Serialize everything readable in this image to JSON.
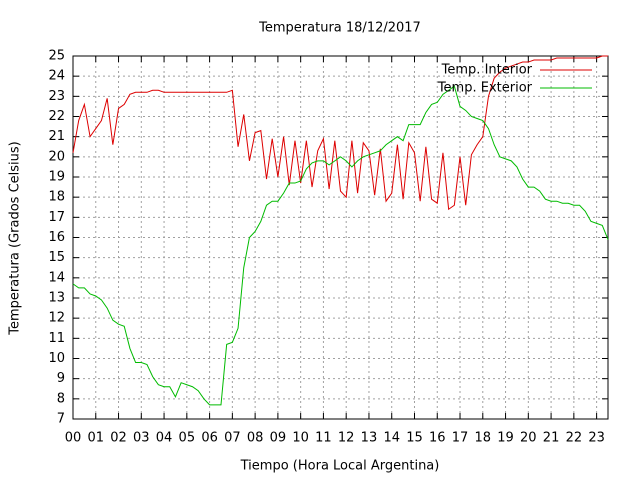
{
  "chart_data": {
    "type": "line",
    "title": "Temperatura 18/12/2017",
    "x_label": "Tiempo (Hora Local Argentina)",
    "y_label": "Temperatura (Grados Celsius)",
    "x": [
      0,
      0.25,
      0.5,
      0.75,
      1,
      1.25,
      1.5,
      1.75,
      2,
      2.25,
      2.5,
      2.75,
      3,
      3.25,
      3.5,
      3.75,
      4,
      4.25,
      4.5,
      4.75,
      5,
      5.25,
      5.5,
      5.75,
      6,
      6.25,
      6.5,
      6.75,
      7,
      7.25,
      7.5,
      7.75,
      8,
      8.25,
      8.5,
      8.75,
      9,
      9.25,
      9.5,
      9.75,
      10,
      10.25,
      10.5,
      10.75,
      11,
      11.25,
      11.5,
      11.75,
      12,
      12.25,
      12.5,
      12.75,
      13,
      13.25,
      13.5,
      13.75,
      14,
      14.25,
      14.5,
      14.75,
      15,
      15.25,
      15.5,
      15.75,
      16,
      16.25,
      16.5,
      16.75,
      17,
      17.25,
      17.5,
      17.75,
      18,
      18.25,
      18.5,
      18.75,
      19,
      19.25,
      19.5,
      19.75,
      20,
      20.25,
      20.5,
      20.75,
      21,
      21.25,
      21.5,
      21.75,
      22,
      22.25,
      22.5,
      22.75,
      23,
      23.25,
      23.5
    ],
    "series": [
      {
        "name": "Temp. Interior",
        "color": "#dd0000",
        "values": [
          20.2,
          21.8,
          22.6,
          21.0,
          21.4,
          21.8,
          22.9,
          20.6,
          22.4,
          22.6,
          23.1,
          23.2,
          23.2,
          23.2,
          23.3,
          23.3,
          23.2,
          23.2,
          23.2,
          23.2,
          23.2,
          23.2,
          23.2,
          23.2,
          23.2,
          23.2,
          23.2,
          23.2,
          23.3,
          20.5,
          22.1,
          19.8,
          21.2,
          21.3,
          18.9,
          20.9,
          19.0,
          21.0,
          18.6,
          20.8,
          18.7,
          20.8,
          18.5,
          20.3,
          20.9,
          18.4,
          20.8,
          18.3,
          18.0,
          20.8,
          18.2,
          20.7,
          20.3,
          18.1,
          20.4,
          17.8,
          18.2,
          20.6,
          17.9,
          20.7,
          20.2,
          17.8,
          20.5,
          17.9,
          17.7,
          20.2,
          17.4,
          17.6,
          20.0,
          17.6,
          20.1,
          20.6,
          21.0,
          23.0,
          23.9,
          24.2,
          24.4,
          24.5,
          24.6,
          24.7,
          24.7,
          24.8,
          24.8,
          24.8,
          24.8,
          24.9,
          24.9,
          24.9,
          24.9,
          24.9,
          24.9,
          24.9,
          24.9,
          25.0,
          25.0
        ]
      },
      {
        "name": "Temp. Exterior",
        "color": "#00bb00",
        "values": [
          13.7,
          13.5,
          13.5,
          13.2,
          13.1,
          12.9,
          12.5,
          11.9,
          11.7,
          11.6,
          10.5,
          9.8,
          9.8,
          9.7,
          9.1,
          8.7,
          8.6,
          8.6,
          8.1,
          8.8,
          8.7,
          8.6,
          8.4,
          8.0,
          7.7,
          7.7,
          7.7,
          10.7,
          10.8,
          11.5,
          14.5,
          16.0,
          16.3,
          16.8,
          17.6,
          17.8,
          17.8,
          18.2,
          18.7,
          18.7,
          18.8,
          19.4,
          19.7,
          19.8,
          19.8,
          19.6,
          19.8,
          20.0,
          19.8,
          19.5,
          19.8,
          20.0,
          20.1,
          20.2,
          20.3,
          20.6,
          20.8,
          21.0,
          20.8,
          21.6,
          21.6,
          21.6,
          22.2,
          22.6,
          22.7,
          23.1,
          23.3,
          23.5,
          22.5,
          22.3,
          22.0,
          21.9,
          21.8,
          21.4,
          20.6,
          20.0,
          19.9,
          19.8,
          19.5,
          18.9,
          18.5,
          18.5,
          18.3,
          17.9,
          17.8,
          17.8,
          17.7,
          17.7,
          17.6,
          17.6,
          17.3,
          16.8,
          16.7,
          16.6,
          15.9
        ]
      }
    ],
    "xlim": [
      0,
      23.5
    ],
    "xticks": [
      {
        "value": 0,
        "label": "00"
      },
      {
        "value": 1,
        "label": "01"
      },
      {
        "value": 2,
        "label": "02"
      },
      {
        "value": 3,
        "label": "03"
      },
      {
        "value": 4,
        "label": "04"
      },
      {
        "value": 5,
        "label": "05"
      },
      {
        "value": 6,
        "label": "06"
      },
      {
        "value": 7,
        "label": "07"
      },
      {
        "value": 8,
        "label": "08"
      },
      {
        "value": 9,
        "label": "09"
      },
      {
        "value": 10,
        "label": "10"
      },
      {
        "value": 11,
        "label": "11"
      },
      {
        "value": 12,
        "label": "12"
      },
      {
        "value": 13,
        "label": "13"
      },
      {
        "value": 14,
        "label": "14"
      },
      {
        "value": 15,
        "label": "15"
      },
      {
        "value": 16,
        "label": "16"
      },
      {
        "value": 17,
        "label": "17"
      },
      {
        "value": 18,
        "label": "18"
      },
      {
        "value": 19,
        "label": "19"
      },
      {
        "value": 20,
        "label": "20"
      },
      {
        "value": 21,
        "label": "21"
      },
      {
        "value": 22,
        "label": "22"
      },
      {
        "value": 23,
        "label": "23"
      }
    ],
    "ylim": [
      7,
      25
    ],
    "yticks": [
      7,
      8,
      9,
      10,
      11,
      12,
      13,
      14,
      15,
      16,
      17,
      18,
      19,
      20,
      21,
      22,
      23,
      24,
      25
    ],
    "grid": true,
    "legend": "top-right"
  }
}
